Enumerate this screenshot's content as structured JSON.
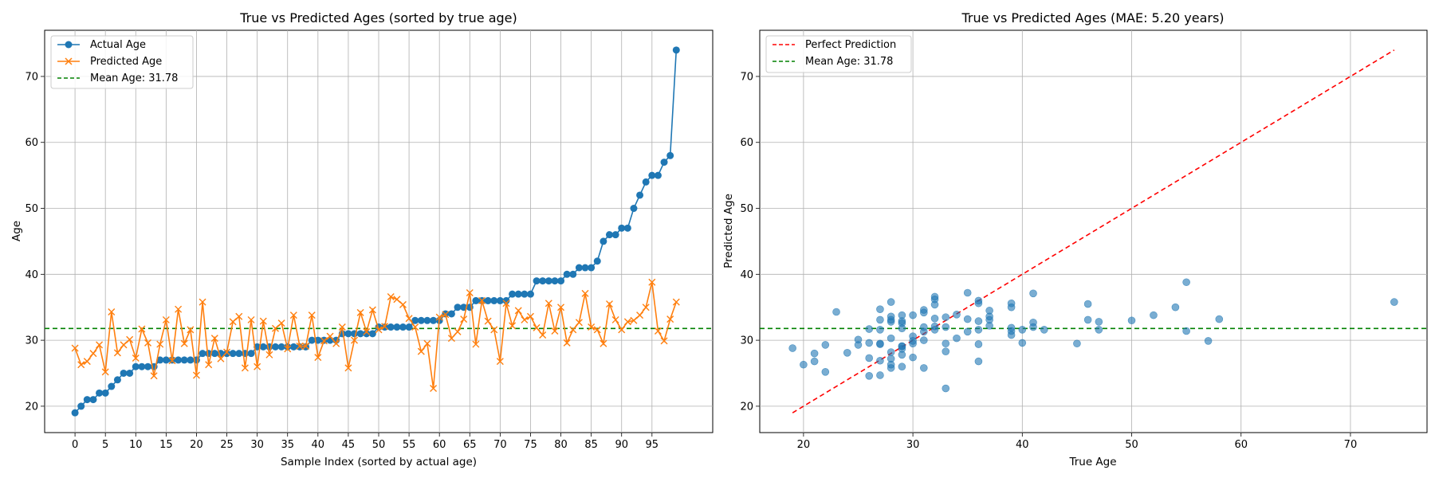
{
  "chart_data": [
    {
      "type": "line",
      "title": "True vs Predicted Ages (sorted by true age)",
      "xlabel": "Sample Index (sorted by actual age)",
      "ylabel": "Age",
      "xlim": [
        -5,
        105
      ],
      "ylim": [
        16,
        77
      ],
      "xticks": [
        0,
        5,
        10,
        15,
        20,
        25,
        30,
        35,
        40,
        45,
        50,
        55,
        60,
        65,
        70,
        75,
        80,
        85,
        90,
        95
      ],
      "yticks": [
        20,
        30,
        40,
        50,
        60,
        70
      ],
      "grid": true,
      "legend_position": "upper-left",
      "series": [
        {
          "name": "Actual Age",
          "color": "#1f77b4",
          "marker": "circle",
          "values": [
            19,
            20,
            21,
            21,
            22,
            22,
            23,
            24,
            25,
            25,
            26,
            26,
            26,
            26,
            27,
            27,
            27,
            27,
            27,
            27,
            27,
            28,
            28,
            28,
            28,
            28,
            28,
            28,
            28,
            28,
            29,
            29,
            29,
            29,
            29,
            29,
            29,
            29,
            29,
            30,
            30,
            30,
            30,
            30,
            31,
            31,
            31,
            31,
            31,
            31,
            32,
            32,
            32,
            32,
            32,
            32,
            33,
            33,
            33,
            33,
            33,
            34,
            34,
            35,
            35,
            35,
            36,
            36,
            36,
            36,
            36,
            36,
            37,
            37,
            37,
            37,
            39,
            39,
            39,
            39,
            39,
            40,
            40,
            41,
            41,
            41,
            42,
            45,
            46,
            46,
            47,
            47,
            50,
            52,
            54,
            55,
            55,
            57,
            58,
            74
          ]
        },
        {
          "name": "Predicted Age",
          "color": "#ff7f0e",
          "marker": "x",
          "values": [
            28.8,
            26.3,
            26.8,
            28.0,
            29.3,
            25.2,
            34.3,
            28.1,
            29.3,
            30.1,
            27.3,
            31.7,
            29.6,
            24.6,
            29.4,
            33.1,
            26.9,
            34.7,
            29.5,
            31.6,
            24.7,
            35.8,
            26.3,
            30.3,
            27.2,
            28.2,
            32.8,
            33.6,
            25.8,
            33.1,
            26.0,
            32.9,
            27.8,
            31.8,
            32.6,
            28.7,
            33.8,
            29.1,
            29.1,
            33.8,
            27.4,
            29.9,
            30.6,
            29.5,
            32.0,
            25.8,
            30.0,
            34.2,
            31.3,
            34.6,
            31.6,
            32.1,
            36.6,
            36.2,
            35.4,
            33.3,
            32.0,
            28.3,
            29.5,
            22.7,
            33.5,
            33.9,
            30.3,
            31.3,
            33.2,
            37.2,
            29.4,
            36.0,
            32.9,
            31.6,
            26.8,
            35.6,
            32.2,
            34.5,
            33.1,
            33.6,
            31.9,
            30.8,
            35.6,
            31.4,
            35.0,
            29.6,
            31.6,
            32.7,
            37.1,
            32.0,
            31.6,
            29.5,
            35.5,
            33.1,
            31.6,
            32.8,
            33.0,
            33.8,
            35.0,
            38.8,
            31.4,
            29.9,
            33.2,
            35.8
          ]
        }
      ],
      "hlines": [
        {
          "name": "Mean Age: 31.78",
          "y": 31.78,
          "color": "#008000",
          "style": "dashed"
        }
      ]
    },
    {
      "type": "scatter",
      "title": "True vs Predicted Ages (MAE: 5.20 years)",
      "xlabel": "True Age",
      "ylabel": "Predicted Age",
      "xlim": [
        16,
        77
      ],
      "ylim": [
        16,
        77
      ],
      "xticks": [
        20,
        30,
        40,
        50,
        60,
        70
      ],
      "yticks": [
        20,
        30,
        40,
        50,
        60,
        70
      ],
      "grid": true,
      "legend_position": "upper-left",
      "points_color": "#1f77b4",
      "lines": [
        {
          "name": "Perfect Prediction",
          "x": [
            19,
            74
          ],
          "y": [
            19,
            74
          ],
          "color": "#ff0000",
          "style": "dashed"
        }
      ],
      "hlines": [
        {
          "name": "Mean Age: 31.78",
          "y": 31.78,
          "color": "#008000",
          "style": "dashed"
        }
      ]
    }
  ]
}
